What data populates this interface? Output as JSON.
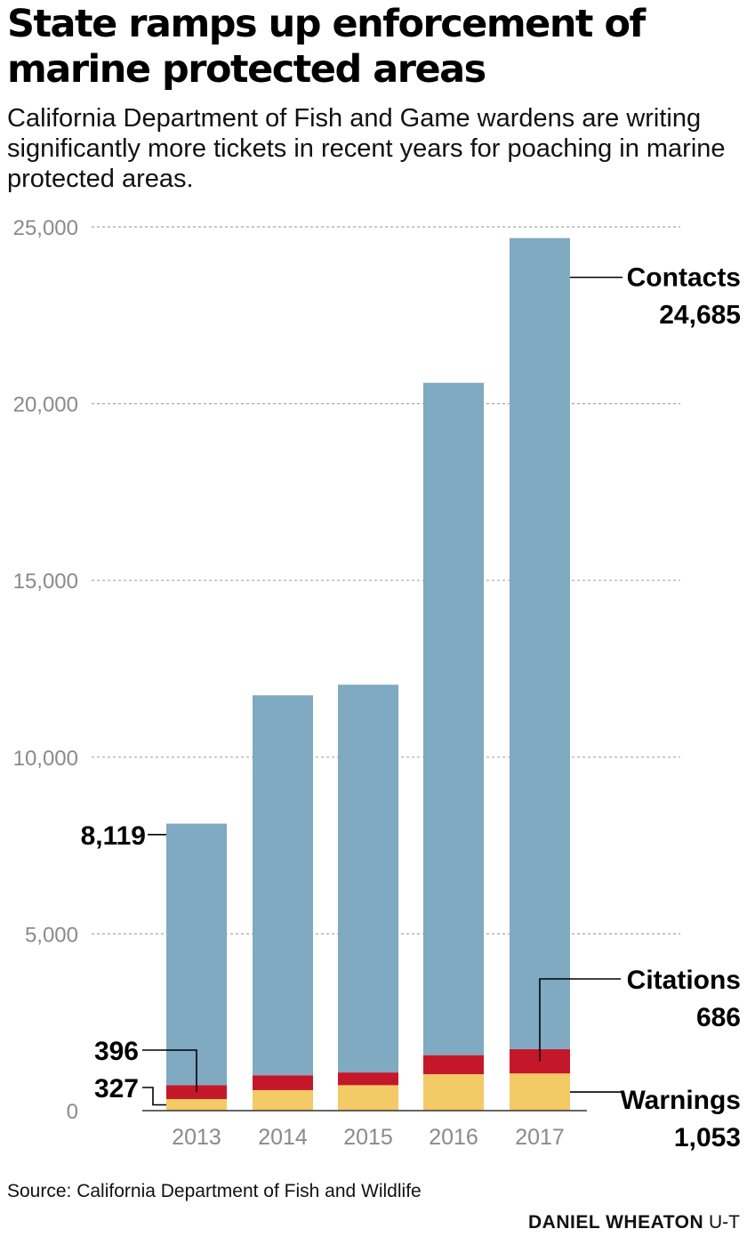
{
  "header": {
    "title": "State ramps up enforcement of marine protected areas",
    "subtitle": "California Department of Fish and Game wardens are writing significantly more tickets in recent years for poaching in marine protected areas."
  },
  "footer": {
    "source": "Source: California Department of Fish and Wildlife",
    "credit_name": "DANIEL WHEATON",
    "credit_org": "U-T"
  },
  "colors": {
    "warnings": "#f2ca66",
    "citations": "#c4182a",
    "contacts": "#80a9c2",
    "grid": "#a8a8a8",
    "tick_text": "#8a8a8a",
    "label_text": "#000000"
  },
  "chart_data": {
    "type": "bar",
    "stacked": true,
    "categories": [
      "2013",
      "2014",
      "2015",
      "2016",
      "2017"
    ],
    "ylim": [
      0,
      25000
    ],
    "yticks": [
      "0",
      "5,000",
      "10,000",
      "15,000",
      "20,000",
      "25,000"
    ],
    "ytick_values": [
      0,
      5000,
      10000,
      15000,
      20000,
      25000
    ],
    "grid": true,
    "series": [
      {
        "name": "Warnings",
        "color": "#f2ca66",
        "values": [
          327,
          580,
          720,
          1030,
          1053
        ]
      },
      {
        "name": "Citations",
        "color": "#c4182a",
        "values": [
          396,
          420,
          360,
          540,
          686
        ]
      },
      {
        "name": "Contacts",
        "color": "#80a9c2",
        "values": [
          7396,
          10750,
          10970,
          19020,
          22946
        ]
      }
    ],
    "totals": [
      8119,
      11750,
      12050,
      20590,
      24685
    ],
    "annotations": {
      "contacts_label": "Contacts",
      "contacts_value": "24,685",
      "citations_label": "Citations",
      "citations_value": "686",
      "warnings_label": "Warnings",
      "warnings_value": "1,053",
      "total_2013": "8,119",
      "citations_2013": "396",
      "warnings_2013": "327"
    }
  }
}
